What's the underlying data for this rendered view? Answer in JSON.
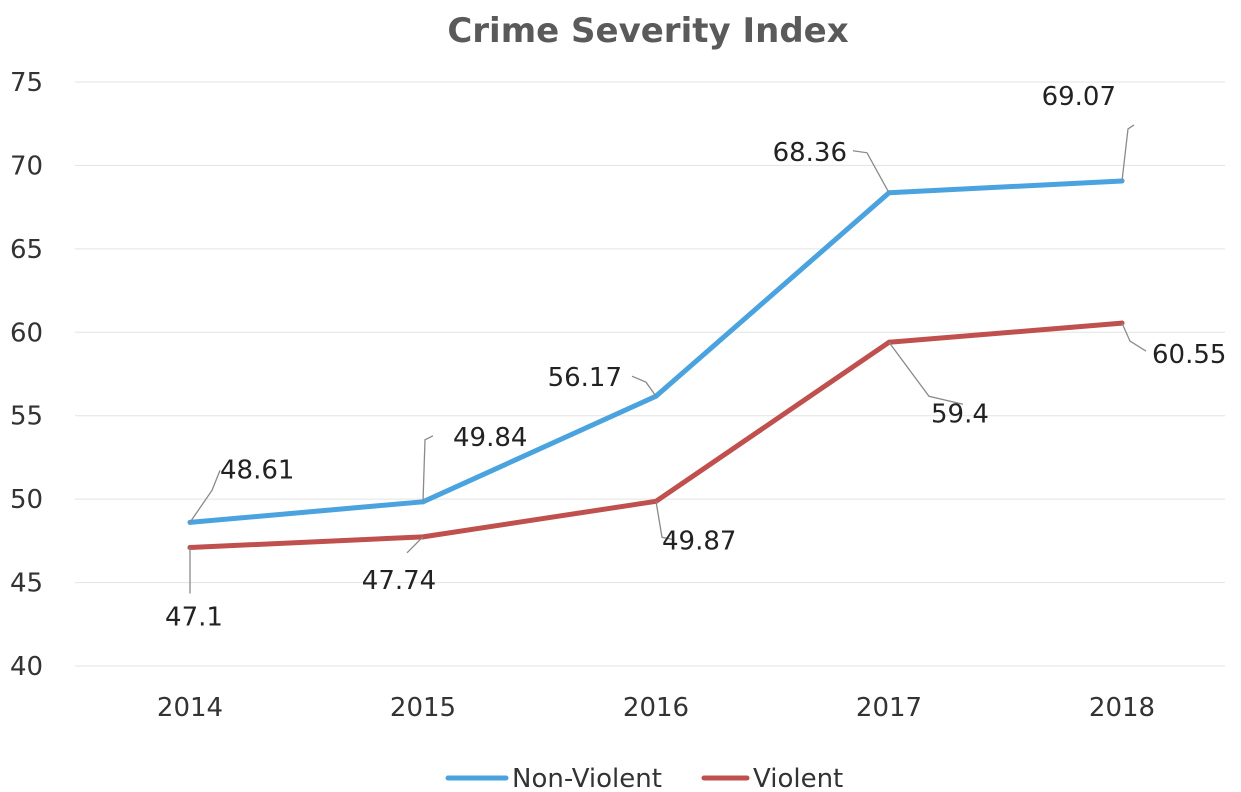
{
  "chart_data": {
    "type": "line",
    "title": "Crime Severity Index",
    "xlabel": "",
    "ylabel": "",
    "categories": [
      "2014",
      "2015",
      "2016",
      "2017",
      "2018"
    ],
    "ylim": [
      40,
      75
    ],
    "yticks": [
      40,
      45,
      50,
      55,
      60,
      65,
      70,
      75
    ],
    "grid": true,
    "legend_position": "bottom",
    "series": [
      {
        "name": "Non-Violent",
        "color": "#4aa3df",
        "values": [
          48.61,
          49.84,
          56.17,
          68.36,
          69.07
        ],
        "labels": [
          "48.61",
          "49.84",
          "56.17",
          "68.36",
          "69.07"
        ]
      },
      {
        "name": "Violent",
        "color": "#c0504d",
        "values": [
          47.1,
          47.74,
          49.87,
          59.4,
          60.55
        ],
        "labels": [
          "47.1",
          "47.74",
          "49.87",
          "59.4",
          "60.55"
        ]
      }
    ]
  }
}
